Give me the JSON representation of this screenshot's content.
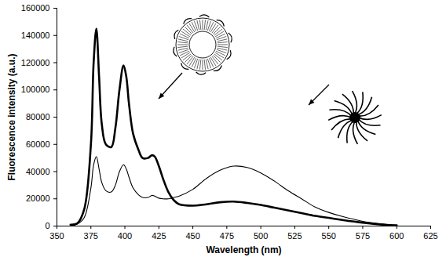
{
  "chart_data": {
    "type": "line",
    "x_label": "Wavelength (nm)",
    "y_label": "Fluorescence intensity (a.u.)",
    "x": [
      360,
      365,
      370,
      375,
      377,
      379,
      381,
      383,
      386,
      390,
      393,
      396,
      399,
      401,
      403,
      406,
      410,
      413,
      417,
      420,
      422,
      425,
      428,
      432,
      436,
      440,
      450,
      460,
      470,
      480,
      490,
      500,
      510,
      520,
      530,
      540,
      550,
      560,
      575,
      590,
      600
    ],
    "series": [
      {
        "color": "#000000",
        "line_style": "thick",
        "values": [
          1000,
          2000,
          12000,
          60000,
          120000,
          145000,
          110000,
          75000,
          60000,
          58000,
          72000,
          100000,
          118000,
          110000,
          90000,
          68000,
          56000,
          50000,
          50000,
          52000,
          51000,
          44000,
          35000,
          25000,
          19000,
          16000,
          15000,
          16000,
          17500,
          18000,
          17000,
          15500,
          13500,
          11500,
          9500,
          7500,
          6000,
          4500,
          2500,
          1000,
          500
        ]
      },
      {
        "color": "#000000",
        "line_style": "thin",
        "values": [
          500,
          1500,
          6000,
          28000,
          45000,
          51000,
          42000,
          32000,
          26000,
          25000,
          30000,
          40000,
          45000,
          42000,
          36000,
          28000,
          23000,
          21000,
          21000,
          22500,
          22000,
          20500,
          20000,
          20000,
          21000,
          22000,
          27000,
          35000,
          41000,
          44000,
          43000,
          39000,
          33000,
          26000,
          20000,
          14000,
          10000,
          7000,
          3500,
          1500,
          500
        ]
      }
    ],
    "xlim": [
      350,
      625
    ],
    "xticks": [
      350,
      375,
      400,
      425,
      450,
      475,
      500,
      525,
      550,
      575,
      600,
      625
    ],
    "ylim": [
      0,
      160000
    ],
    "yticks": [
      0,
      20000,
      40000,
      60000,
      80000,
      100000,
      120000,
      140000,
      160000
    ],
    "grid": false
  }
}
